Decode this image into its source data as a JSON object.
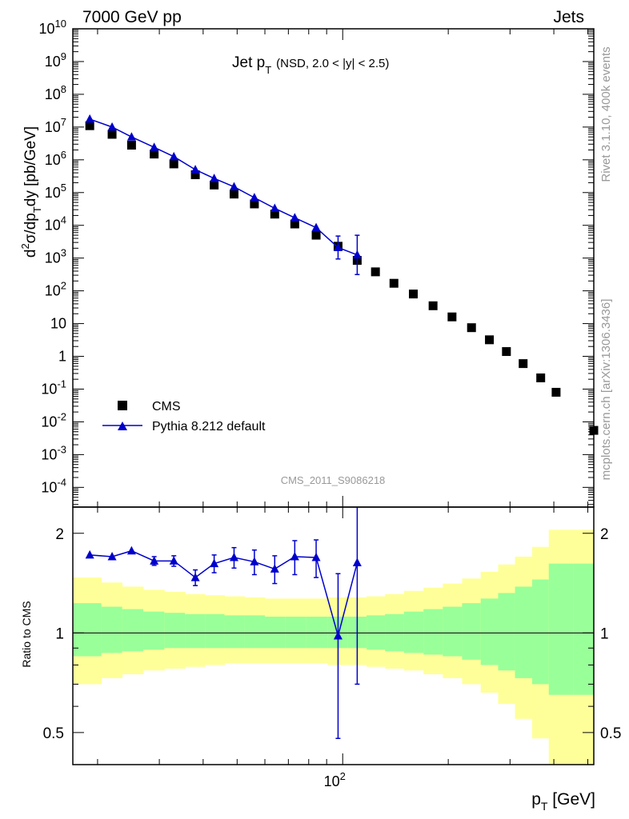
{
  "header": {
    "left": "7000 GeV pp",
    "right": "Jets"
  },
  "side_labels": {
    "rivet": "Rivet 3.1.10,  400k events",
    "mcplots": "mcplots.cern.ch [arXiv:1306.3436]"
  },
  "colors": {
    "mc": "#0000cc",
    "data": "#000000",
    "band_inner": "#99ff99",
    "band_outer": "#ffff99"
  },
  "chart_data": [
    {
      "type": "scatter",
      "panel": "main",
      "title_main": "Jet p",
      "title_sub": "T",
      "title_extra": "(NSD, 2.0 < |y| < 2.5)",
      "ylabel": "d²σ/dp_T dy [pb/GeV]",
      "xscale": "log",
      "yscale": "log",
      "xlim": [
        17,
        520
      ],
      "ylim": [
        2.5e-05,
        10000000000
      ],
      "ytick_labels": [
        "10^-4",
        "10^-3",
        "10^-2",
        "10^-1",
        "1",
        "10",
        "10^2",
        "10^3",
        "10^4",
        "10^5",
        "10^6",
        "10^7",
        "10^8",
        "10^9",
        "10^10"
      ],
      "watermark": "CMS_2011_S9086218",
      "legend_position": "lower-left",
      "series": [
        {
          "name": "CMS",
          "marker": "square",
          "x": [
            19,
            22,
            25,
            29,
            33,
            38,
            43,
            49,
            56,
            64,
            73,
            84,
            97,
            110,
            124,
            140,
            159,
            181,
            205,
            233,
            262,
            293,
            327,
            367,
            406,
            520
          ],
          "y": [
            11000000,
            6000000,
            2800000,
            1500000,
            750000,
            350000,
            170000,
            90000,
            45000,
            22000,
            11000,
            5000,
            2300,
            850,
            380,
            170,
            80,
            35,
            16,
            7.5,
            3.2,
            1.4,
            0.6,
            0.22,
            0.08,
            0.0055
          ]
        },
        {
          "name": "Pythia 8.212 default",
          "marker": "triangle",
          "x": [
            19,
            22,
            25,
            29,
            33,
            38,
            43,
            49,
            56,
            64,
            73,
            84,
            97,
            110
          ],
          "y": [
            17500000,
            10000000,
            5000000,
            2400000,
            1250000,
            500000,
            270000,
            150000,
            70000,
            33000,
            17000,
            8500,
            2100,
            1250
          ],
          "yerr": [
            0,
            0,
            0,
            0,
            0,
            0,
            0,
            0,
            0,
            0,
            0,
            0,
            0.35,
            0.6
          ]
        }
      ]
    },
    {
      "type": "line",
      "panel": "ratio",
      "ylabel": "Ratio to CMS",
      "xlabel": "p_T [GeV]",
      "xscale": "log",
      "yscale": "log",
      "xlim": [
        17,
        520
      ],
      "ylim": [
        0.4,
        2.4
      ],
      "ytick_labels": [
        "0.5",
        "1",
        "2"
      ],
      "xtick_labels": [
        "10^2"
      ],
      "bands": {
        "x_edges": [
          17,
          20.5,
          23.5,
          27,
          31,
          35.5,
          40.5,
          46,
          52.5,
          60,
          68.5,
          78.5,
          90.5,
          103.5,
          117,
          132,
          149.5,
          170,
          193,
          219,
          247.5,
          277.5,
          310,
          347,
          387,
          454,
          520
        ],
        "inner_low": [
          0.85,
          0.87,
          0.88,
          0.89,
          0.9,
          0.9,
          0.9,
          0.9,
          0.9,
          0.9,
          0.9,
          0.9,
          0.9,
          0.9,
          0.89,
          0.88,
          0.87,
          0.86,
          0.85,
          0.83,
          0.8,
          0.77,
          0.73,
          0.7,
          0.65,
          0.65
        ],
        "inner_high": [
          1.23,
          1.2,
          1.18,
          1.16,
          1.15,
          1.14,
          1.14,
          1.13,
          1.13,
          1.12,
          1.12,
          1.12,
          1.12,
          1.12,
          1.13,
          1.14,
          1.16,
          1.18,
          1.2,
          1.23,
          1.27,
          1.32,
          1.38,
          1.45,
          1.62,
          1.62
        ],
        "outer_low": [
          0.7,
          0.73,
          0.75,
          0.77,
          0.78,
          0.79,
          0.8,
          0.81,
          0.81,
          0.81,
          0.81,
          0.81,
          0.8,
          0.8,
          0.79,
          0.78,
          0.77,
          0.75,
          0.73,
          0.7,
          0.66,
          0.61,
          0.55,
          0.48,
          0.38,
          0.38
        ],
        "outer_high": [
          1.47,
          1.42,
          1.38,
          1.35,
          1.33,
          1.31,
          1.3,
          1.29,
          1.28,
          1.27,
          1.27,
          1.27,
          1.28,
          1.28,
          1.29,
          1.31,
          1.34,
          1.37,
          1.41,
          1.46,
          1.53,
          1.61,
          1.7,
          1.82,
          2.05,
          2.05
        ]
      },
      "series": [
        {
          "name": "Pythia 8.212 default",
          "marker": "triangle",
          "x": [
            19,
            22,
            25,
            29,
            33,
            38,
            43,
            49,
            56,
            64,
            73,
            84,
            97,
            110
          ],
          "y": [
            1.72,
            1.7,
            1.77,
            1.65,
            1.65,
            1.47,
            1.62,
            1.69,
            1.64,
            1.56,
            1.7,
            1.69,
            0.98,
            1.63
          ],
          "yerr_low": [
            0,
            0,
            0,
            0.05,
            0.06,
            0.08,
            0.1,
            0.12,
            0.14,
            0.15,
            0.2,
            0.22,
            0.5,
            0.93
          ],
          "yerr_high": [
            0,
            0,
            0,
            0.05,
            0.06,
            0.08,
            0.1,
            0.12,
            0.14,
            0.15,
            0.2,
            0.22,
            0.53,
            0.9
          ]
        }
      ]
    }
  ]
}
